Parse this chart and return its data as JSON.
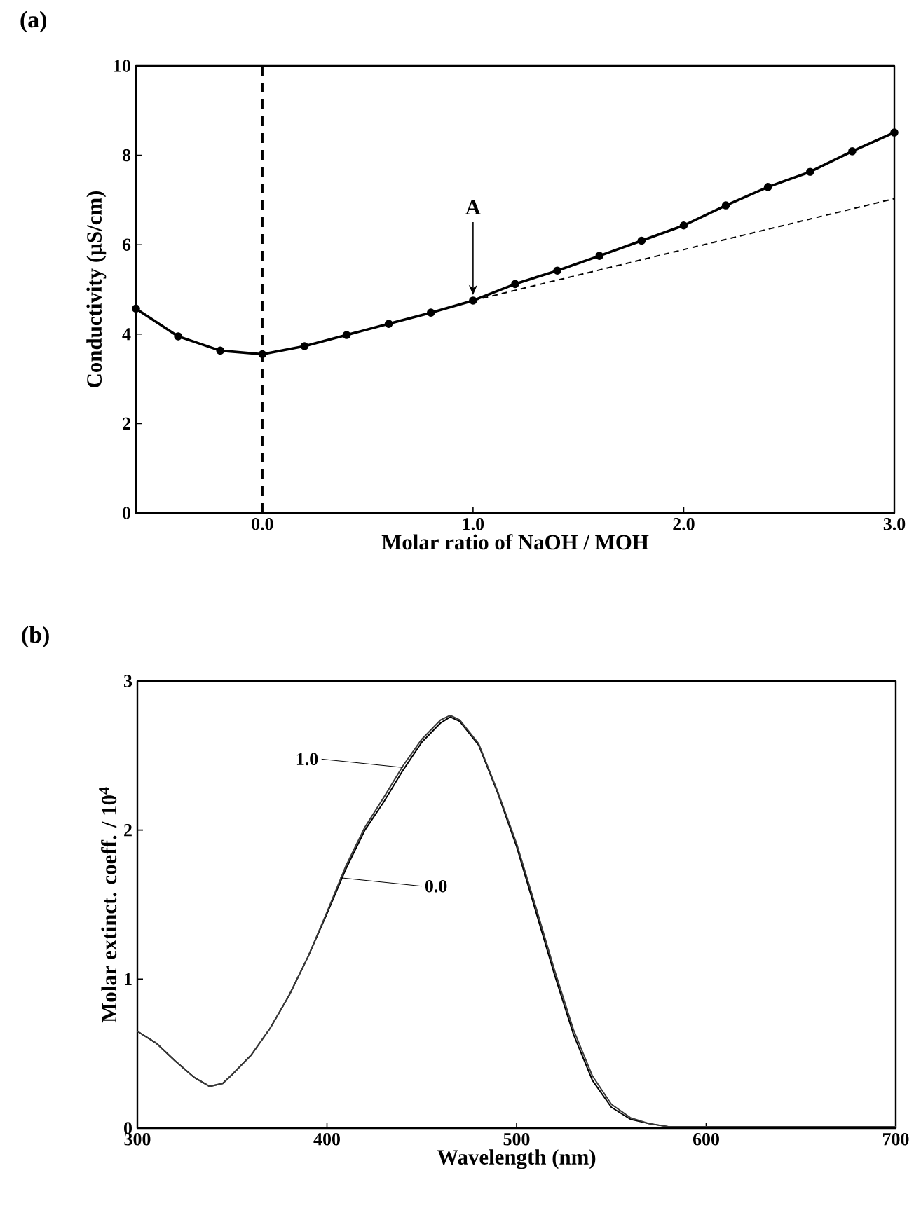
{
  "chart_data": [
    {
      "type": "line",
      "title": "(a)",
      "xlabel": "Molar ratio of NaOH / MOH",
      "ylabel": "Conductivity (µS/cm)",
      "xlim": [
        -0.6,
        3.0
      ],
      "ylim": [
        0,
        10
      ],
      "xticks": [
        {
          "value": 0,
          "label": "0.0"
        },
        {
          "value": 1,
          "label": "1.0"
        },
        {
          "value": 2,
          "label": "2.0"
        },
        {
          "value": 3,
          "label": "3.0"
        }
      ],
      "yticks": [
        0,
        2,
        4,
        6,
        8,
        10
      ],
      "series": [
        {
          "color": "#000000",
          "marker": "circle",
          "line_style": "solid",
          "x": [
            -0.6,
            -0.4,
            -0.2,
            0.0,
            0.2,
            0.4,
            0.6,
            0.8,
            1.0,
            1.2,
            1.4,
            1.6,
            1.8,
            2.0,
            2.2,
            2.4,
            2.6,
            2.8,
            3.0
          ],
          "values": [
            4.57,
            3.95,
            3.63,
            3.55,
            3.73,
            3.98,
            4.23,
            4.48,
            4.75,
            5.12,
            5.42,
            5.75,
            6.09,
            6.43,
            6.88,
            7.29,
            7.63,
            8.09,
            8.51
          ]
        },
        {
          "type": "line",
          "color": "#000000",
          "marker": "none",
          "line_style": "dashed",
          "x": [
            1.0,
            3.0
          ],
          "values": [
            4.75,
            7.03
          ]
        }
      ],
      "ref_lines": [
        {
          "axis": "x",
          "value": 0,
          "line_style": "dashed",
          "color": "#000000"
        }
      ],
      "annotations": [
        {
          "text": "A",
          "x": 1.0,
          "y": 4.75
        }
      ]
    },
    {
      "type": "line",
      "title": "(b)",
      "xlabel": "Wavelength (nm)",
      "ylabel": "Molar extinct. coeff. / 10$^{4}$",
      "xlim": [
        300,
        700
      ],
      "ylim": [
        0,
        3
      ],
      "xticks": [
        300,
        400,
        500,
        600,
        700
      ],
      "yticks": [
        0,
        1,
        2,
        3
      ],
      "series": [
        {
          "color": "#000000",
          "marker": "none",
          "line_style": "solid",
          "x": [
            300,
            310,
            320,
            330,
            338,
            345,
            350,
            360,
            370,
            380,
            390,
            400,
            410,
            420,
            430,
            440,
            450,
            460,
            465,
            470,
            480,
            490,
            500,
            510,
            520,
            530,
            540,
            550,
            560,
            570,
            580,
            600,
            650,
            700
          ],
          "values": [
            0.65,
            0.57,
            0.45,
            0.34,
            0.28,
            0.3,
            0.36,
            0.49,
            0.67,
            0.89,
            1.15,
            1.44,
            1.74,
            2.0,
            2.19,
            2.4,
            2.59,
            2.72,
            2.76,
            2.73,
            2.57,
            2.25,
            1.89,
            1.46,
            1.03,
            0.63,
            0.32,
            0.14,
            0.06,
            0.03,
            0.01,
            0.01,
            0.01,
            0.01
          ]
        },
        {
          "color": "#3a3a3a",
          "marker": "none",
          "line_style": "solid",
          "x": [
            300,
            310,
            320,
            330,
            338,
            345,
            350,
            360,
            370,
            380,
            390,
            400,
            410,
            420,
            430,
            440,
            450,
            460,
            465,
            470,
            480,
            490,
            500,
            510,
            520,
            530,
            540,
            550,
            560,
            570,
            580,
            600,
            650,
            700
          ],
          "values": [
            0.65,
            0.57,
            0.45,
            0.34,
            0.28,
            0.3,
            0.36,
            0.49,
            0.67,
            0.89,
            1.15,
            1.45,
            1.76,
            2.02,
            2.22,
            2.43,
            2.61,
            2.74,
            2.77,
            2.74,
            2.58,
            2.26,
            1.91,
            1.49,
            1.06,
            0.66,
            0.35,
            0.16,
            0.07,
            0.03,
            0.01,
            0.01,
            0.01,
            0.01
          ]
        }
      ],
      "annotations": [
        {
          "text": "1.0",
          "x": 440,
          "y": 2.42
        },
        {
          "text": "0.0",
          "x": 407,
          "y": 1.68
        }
      ]
    }
  ]
}
